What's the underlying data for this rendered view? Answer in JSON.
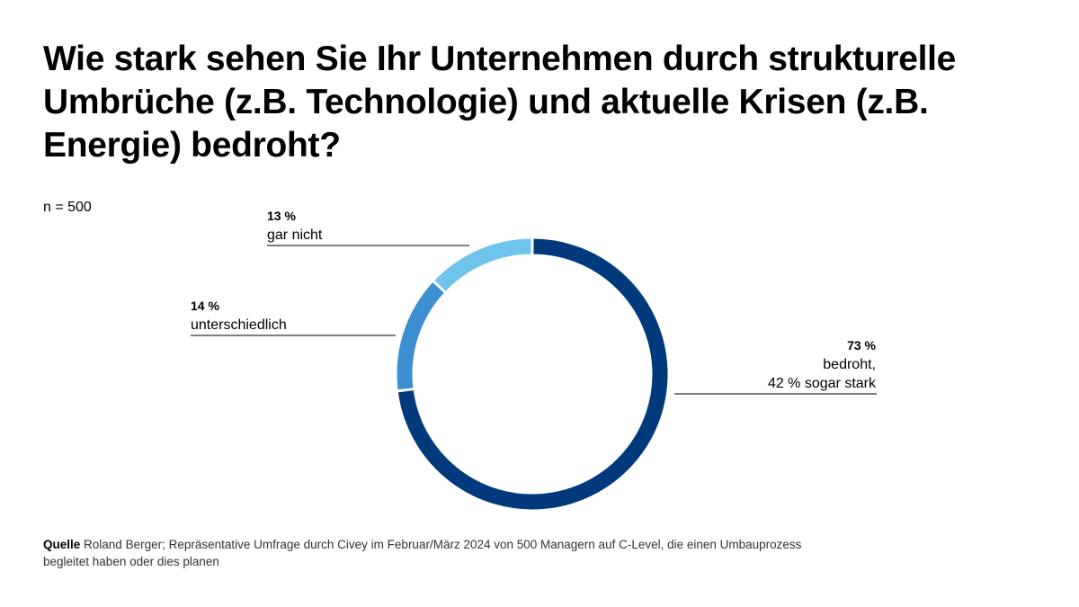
{
  "title": "Wie stark sehen Sie Ihr Unternehmen durch strukturelle Umbrüche (z.B. Technologie) und aktuelle Krisen (z.B. Energie) bedroht?",
  "sample": "n = 500",
  "chart_data": {
    "type": "pie",
    "donut": true,
    "categories": [
      "bedroht",
      "unterschiedlich",
      "gar nicht"
    ],
    "values": [
      73,
      14,
      13
    ],
    "colors": [
      "#003a7d",
      "#3d8fd1",
      "#6fc4ec"
    ],
    "labels": [
      {
        "value": "73 %",
        "text": "bedroht,",
        "text2": "42 % sogar stark"
      },
      {
        "value": "14 %",
        "text": "unterschiedlich"
      },
      {
        "value": "13 %",
        "text": "gar nicht"
      }
    ]
  },
  "source": {
    "label": "Quelle",
    "text": "Roland Berger; Repräsentative Umfrage durch Civey im Februar/März 2024 von 500 Managern auf C-Level, die einen Umbauprozess begleitet haben oder dies planen"
  }
}
